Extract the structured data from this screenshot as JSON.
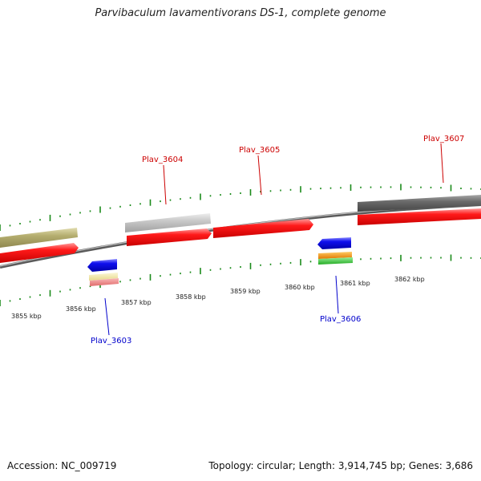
{
  "title": "Parvibaculum lavamentivorans DS-1, complete genome",
  "footer": {
    "accession": "Accession: NC_009719",
    "summary": "Topology: circular; Length: 3,914,745 bp; Genes: 3,686"
  },
  "scale_labels": [
    "3855 kbp",
    "3856 kbp",
    "3857 kbp",
    "3858 kbp",
    "3859 kbp",
    "3860 kbp",
    "3861 kbp",
    "3862 kbp"
  ],
  "gene_labels": {
    "plav_3603": "Plav_3603",
    "plav_3604": "Plav_3604",
    "plav_3605": "Plav_3605",
    "plav_3606": "Plav_3606",
    "plav_3607": "Plav_3607"
  },
  "colors": {
    "forward_label": "#cc0000",
    "reverse_label": "#0000cc",
    "tick": "#1a8a1a",
    "gene_red": "#ff1a1a",
    "gene_blue": "#1010ee",
    "gene_olive": "#b5ae6f",
    "gene_lightgray": "#c8c8c8",
    "gene_darkgray": "#6a6a6a",
    "gene_orange": "#ff9900",
    "gene_green": "#33cc33",
    "gene_yellow": "#f3e9a6",
    "gene_pink": "#f08080",
    "backbone": "#888888"
  }
}
